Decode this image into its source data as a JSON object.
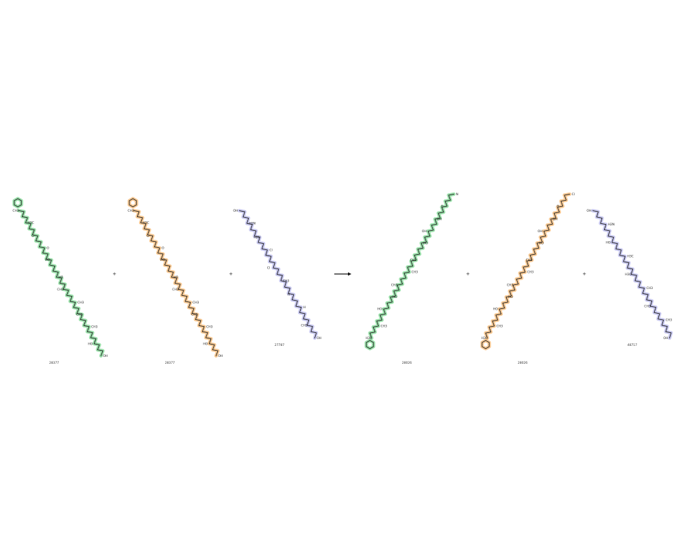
{
  "colors": {
    "green": "#22bb44",
    "orange": "#ee8811",
    "blue": "#8888dd",
    "cyan": "#33cccc",
    "yellow": "#cccc00",
    "bond": "#1a1a1a"
  },
  "reaction": {
    "arrow": "reaction-arrow",
    "plus_sign": "+",
    "reactants": [
      {
        "id": "28377",
        "color": "green",
        "labels": [
          "CH3",
          "H3C",
          "O",
          "O",
          "HO",
          "HO",
          "CH3",
          "CH3",
          "CH3",
          "CH3",
          "HO",
          "OH"
        ]
      },
      {
        "id": "28377",
        "color": "orange",
        "labels": [
          "CH3",
          "H3C",
          "O",
          "O",
          "HO",
          "HO",
          "CH3",
          "CH3",
          "CH3",
          "CH3",
          "HO",
          "OH"
        ]
      },
      {
        "id": "27787",
        "color": "blue",
        "labels": [
          "OH",
          "H2N",
          "H2N",
          "Cl",
          "Cl",
          "CH3",
          "H",
          "H",
          "CH3",
          "OH"
        ]
      }
    ],
    "products": [
      {
        "id": "28026",
        "color": "green",
        "labels": [
          "H3C",
          "CH3",
          "HO",
          "HO",
          "CH3",
          "CH3",
          "CH3",
          "HO",
          "OH",
          "OH",
          "O",
          "N"
        ]
      },
      {
        "id": "28026",
        "color": "orange",
        "labels": [
          "H3C",
          "CH3",
          "HO",
          "HO",
          "CH3",
          "CH3",
          "CH3",
          "HO",
          "OH",
          "OH",
          "O",
          "Cl"
        ]
      },
      {
        "id": "48717",
        "color": "blue",
        "labels": [
          "OH",
          "H2N",
          "HO",
          "H3C",
          "H3C",
          "CH3",
          "CH3",
          "CH3",
          "OH"
        ]
      }
    ]
  }
}
